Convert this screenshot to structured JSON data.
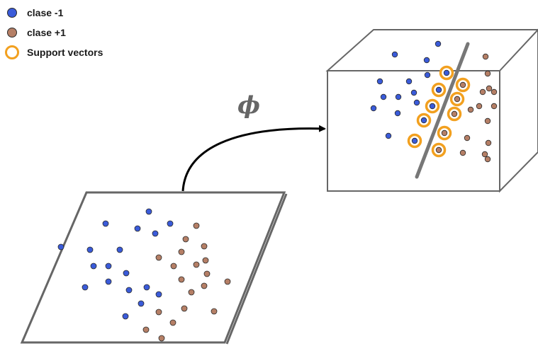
{
  "legend": {
    "items": [
      {
        "label": "clase -1",
        "kind": "dot",
        "color": "#3a5bd9"
      },
      {
        "label": "clase +1",
        "kind": "dot",
        "color": "#b57f66"
      },
      {
        "label": "Support vectors",
        "kind": "ring",
        "color": "#f2a01f"
      }
    ]
  },
  "mapping_symbol": "ϕ",
  "colors": {
    "class_neg": "#3a5bd9",
    "class_pos": "#b57f66",
    "support_ring": "#f2a01f",
    "frame": "#666666",
    "hyperplane": "#777777"
  }
}
